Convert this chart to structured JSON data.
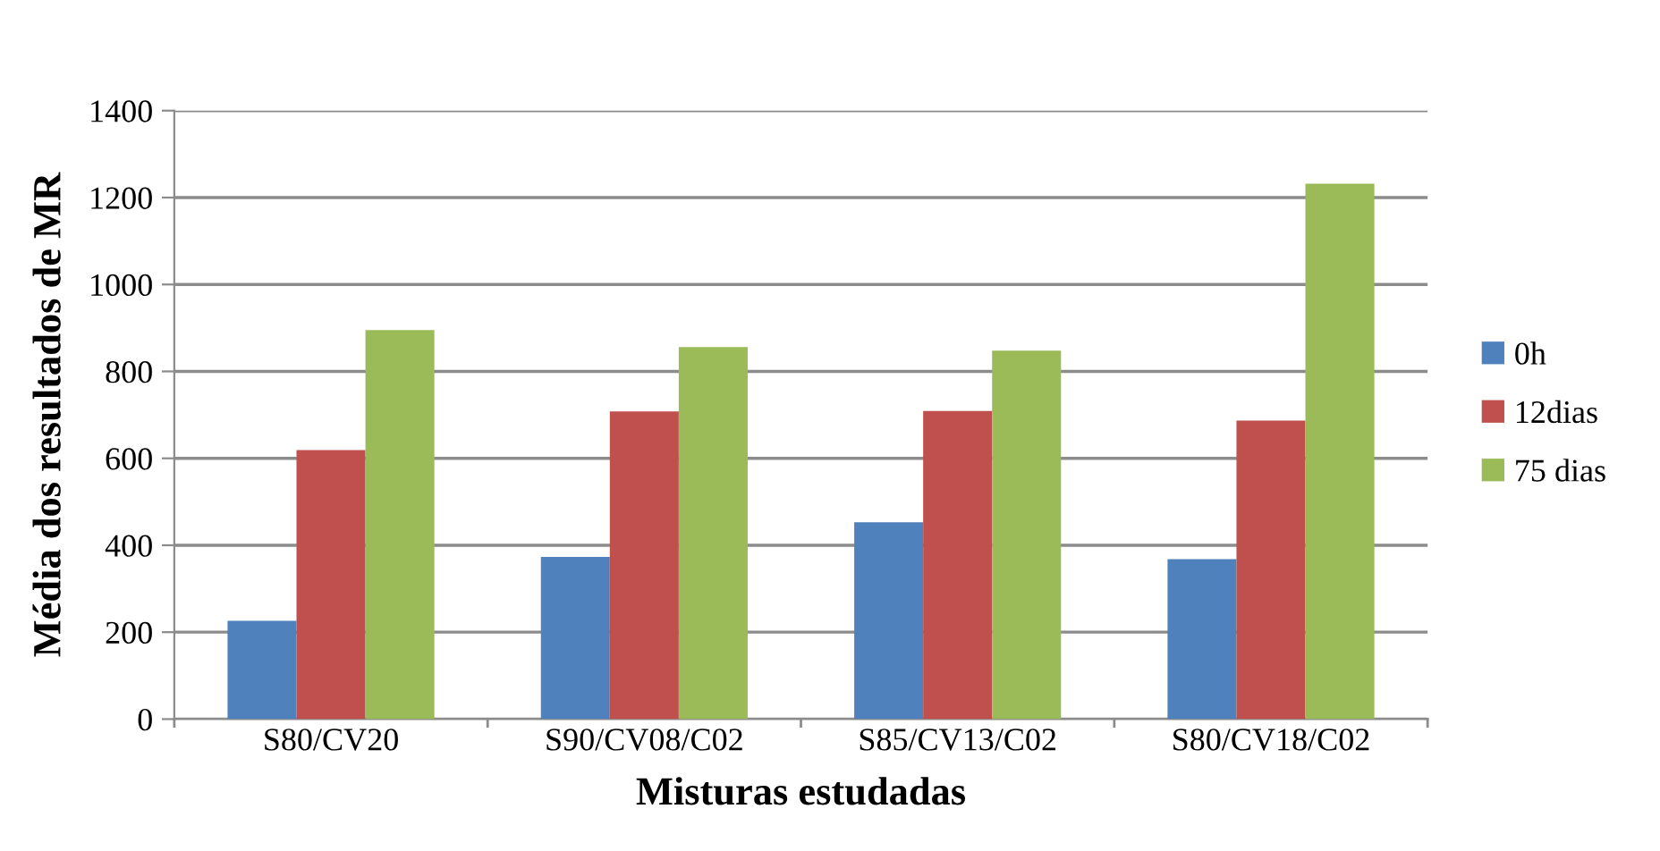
{
  "chart_data": {
    "type": "bar",
    "xlabel": "Misturas estudadas",
    "ylabel": "Média dos resultados de MR",
    "categories": [
      "S80/CV20",
      "S90/CV08/C02",
      "S85/CV13/C02",
      "S80/CV18/C02"
    ],
    "series": [
      {
        "name": "0h",
        "color": "#4f81bd",
        "values": [
          226,
          373,
          453,
          368
        ]
      },
      {
        "name": "12dias",
        "color": "#c0504d",
        "values": [
          619,
          708,
          709,
          687
        ]
      },
      {
        "name": "75 dias",
        "color": "#9bbb59",
        "values": [
          895,
          856,
          848,
          1232
        ]
      }
    ],
    "ylim": [
      0,
      1400
    ],
    "yticks": [
      0,
      200,
      400,
      600,
      800,
      1000,
      1200,
      1400
    ],
    "grid": "y",
    "legend": "right"
  }
}
